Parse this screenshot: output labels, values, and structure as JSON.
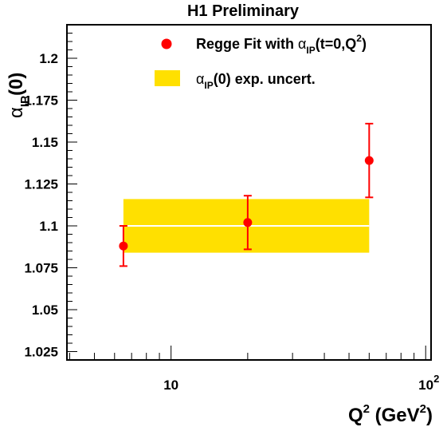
{
  "chart_data": {
    "type": "scatter",
    "title": "H1 Preliminary",
    "xlabel": {
      "base": "Q",
      "sup": "2",
      "unit_open": " (GeV",
      "unit_sup": "2",
      "unit_close": ")"
    },
    "ylabel": {
      "alpha": "α",
      "sub": "IP",
      "rest": "(0)"
    },
    "xscale": "log",
    "xlim": [
      3.9,
      105
    ],
    "ylim": [
      1.02,
      1.22
    ],
    "x_ticks": [
      {
        "value": 10,
        "base": "10",
        "sup": ""
      },
      {
        "value": 100,
        "base": "10",
        "sup": "2"
      }
    ],
    "y_ticks": [
      {
        "value": 1.025,
        "label": "1.025"
      },
      {
        "value": 1.05,
        "label": "1.05"
      },
      {
        "value": 1.075,
        "label": "1.075"
      },
      {
        "value": 1.1,
        "label": "1.1"
      },
      {
        "value": 1.125,
        "label": "1.125"
      },
      {
        "value": 1.15,
        "label": "1.15"
      },
      {
        "value": 1.175,
        "label": "1.175"
      },
      {
        "value": 1.2,
        "label": "1.2"
      }
    ],
    "series": [
      {
        "color": "#ff0000",
        "points": [
          {
            "x": 6.5,
            "y": 1.088,
            "err_lo": 0.012,
            "err_hi": 0.012
          },
          {
            "x": 20.0,
            "y": 1.102,
            "err_lo": 0.016,
            "err_hi": 0.016
          },
          {
            "x": 60.0,
            "y": 1.139,
            "err_lo": 0.022,
            "err_hi": 0.022
          }
        ]
      }
    ],
    "band": {
      "color": "#ffe000",
      "x_range": [
        6.5,
        60.0
      ],
      "central": 1.1,
      "low": 1.084,
      "high": 1.116
    },
    "legend": {
      "placement": "top-right",
      "entries": [
        {
          "marker": "circle",
          "text_parts": [
            "Regge Fit with ",
            "α",
            "IP",
            "(t=0,Q",
            "2",
            ")"
          ]
        },
        {
          "marker": "band",
          "text_parts": [
            "α",
            "IP",
            "(0) exp. uncert."
          ]
        }
      ]
    },
    "grid": false
  }
}
